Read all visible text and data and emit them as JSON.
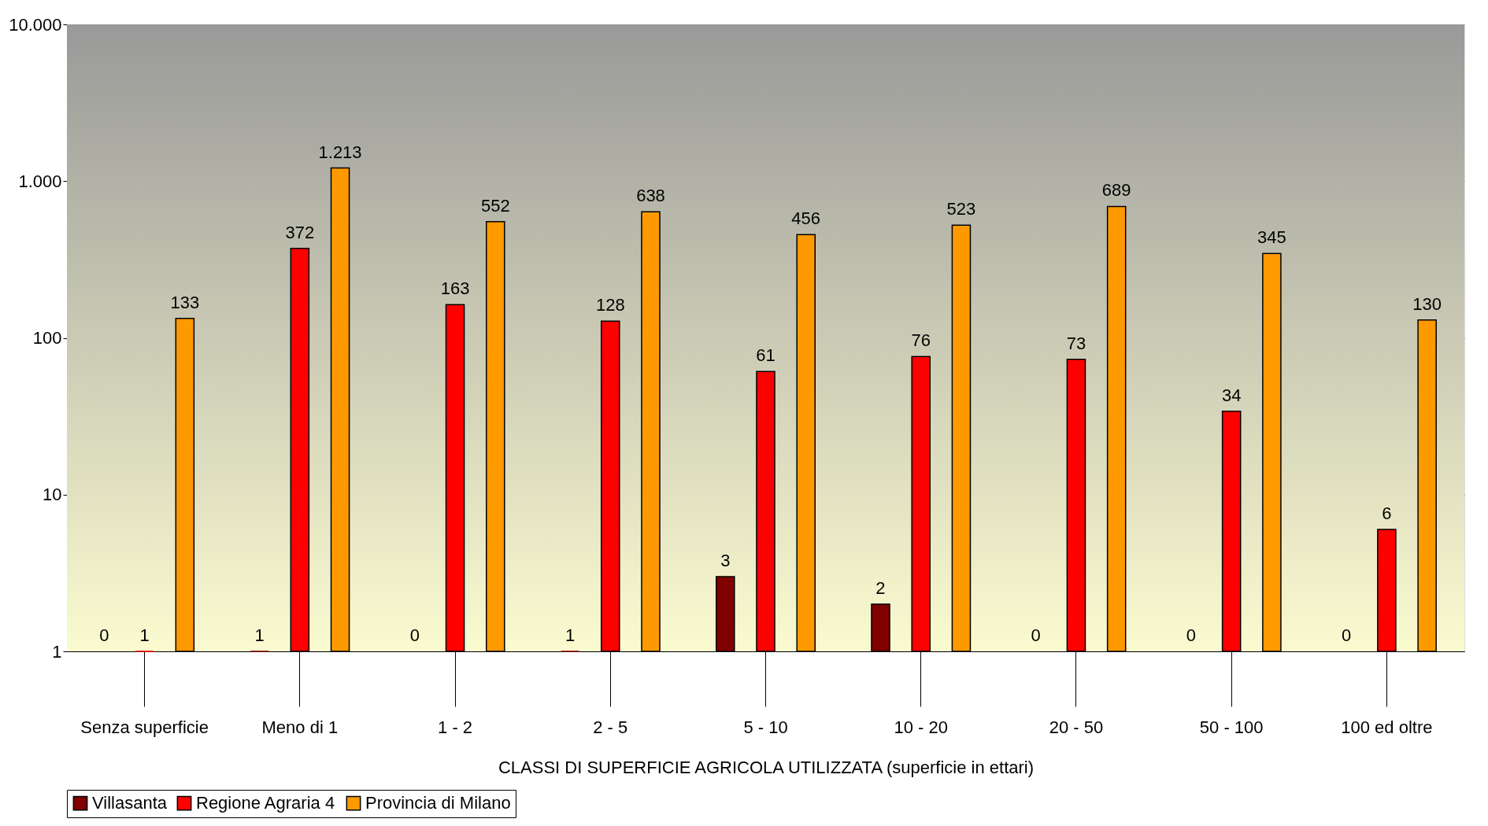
{
  "chart_data": {
    "type": "bar",
    "xlabel": "CLASSI DI SUPERFICIE AGRICOLA UTILIZZATA (superficie in ettari)",
    "categories": [
      "Senza superficie",
      "Meno di 1",
      "1 - 2",
      "2 - 5",
      "5 - 10",
      "10 - 20",
      "20 - 50",
      "50 - 100",
      "100 ed oltre"
    ],
    "series": [
      {
        "name": "Villasanta",
        "color": "#800000",
        "values": [
          null,
          1,
          null,
          1,
          3,
          2,
          null,
          null,
          null
        ],
        "value_labels": [
          "0",
          "1",
          "0",
          "1",
          "3",
          "2",
          "0",
          "0",
          "0"
        ]
      },
      {
        "name": "Regione Agraria 4",
        "color": "#ff0000",
        "values": [
          1,
          372,
          163,
          128,
          61,
          76,
          73,
          34,
          6
        ],
        "value_labels": [
          "1",
          "372",
          "163",
          "128",
          "61",
          "76",
          "73",
          "34",
          "6"
        ]
      },
      {
        "name": "Provincia di Milano",
        "color": "#ff9900",
        "values": [
          133,
          1213,
          552,
          638,
          456,
          523,
          689,
          345,
          130
        ],
        "value_labels": [
          "133",
          "1.213",
          "552",
          "638",
          "456",
          "523",
          "689",
          "345",
          "130"
        ]
      }
    ],
    "log": "y",
    "ylim": [
      1,
      10000
    ],
    "yticks": [
      1,
      10,
      100,
      {
        "value": 1000,
        "label": "1.000"
      },
      {
        "value": 10000,
        "label": "10.000"
      }
    ],
    "grid": "y",
    "legend": "bottom"
  }
}
